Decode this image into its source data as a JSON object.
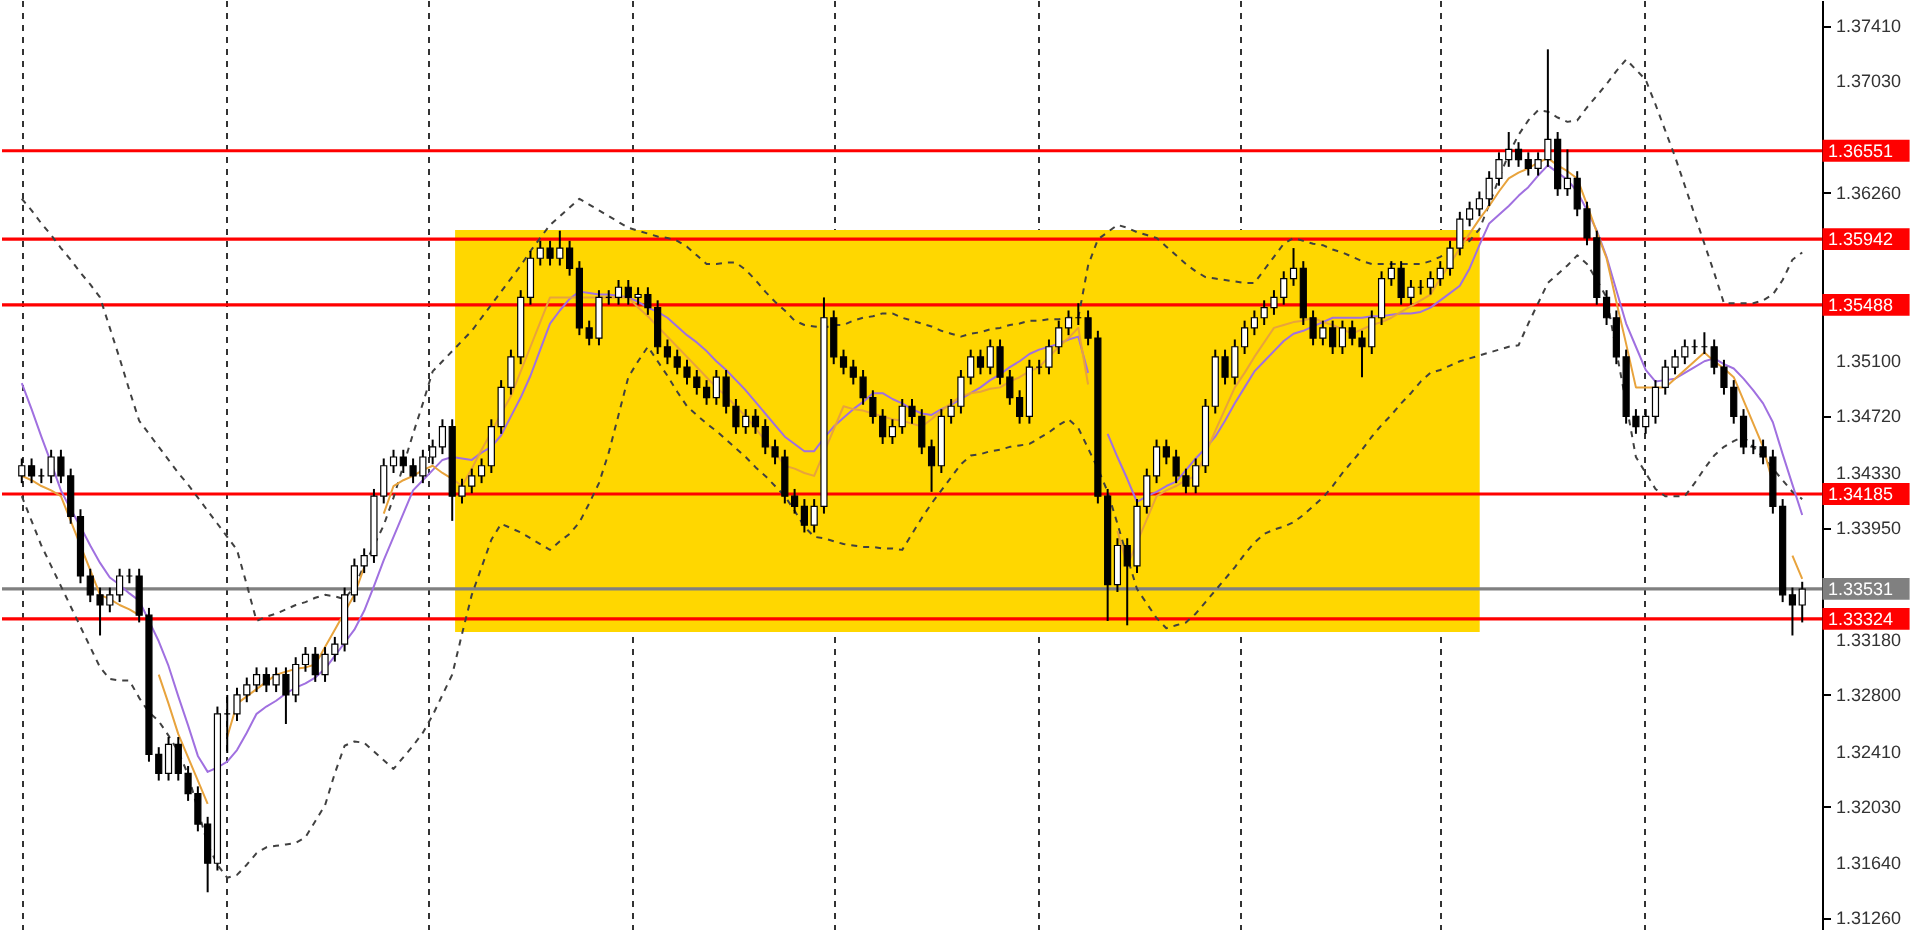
{
  "chart_data": {
    "type": "candlestick",
    "categories": [
      null,
      null,
      null,
      null,
      null,
      null,
      null,
      null,
      null,
      null,
      null,
      null,
      null,
      null,
      null,
      null,
      null,
      null,
      null,
      null,
      null,
      null,
      null,
      null,
      null,
      null,
      null,
      null,
      null,
      null,
      null,
      null,
      null,
      null,
      null,
      null,
      null,
      null,
      null,
      null,
      null,
      null,
      null,
      null,
      null,
      null,
      null,
      null,
      null,
      null,
      null,
      null,
      null,
      null,
      null,
      null,
      null,
      null,
      null,
      null,
      null,
      null,
      null,
      null,
      null,
      null,
      null,
      null,
      null,
      null,
      null,
      null,
      null,
      null,
      null,
      null,
      null,
      null,
      null,
      null,
      null,
      null,
      null,
      null,
      null,
      null,
      null,
      null,
      null,
      null,
      null,
      null,
      null,
      null,
      null,
      null,
      null,
      null,
      null,
      null,
      null,
      null,
      null,
      null,
      null,
      null,
      null,
      null,
      null,
      null,
      null,
      null,
      null,
      null,
      null,
      null,
      null,
      null,
      null,
      null,
      null,
      null,
      null,
      null,
      null,
      null,
      null,
      null,
      null,
      null,
      null,
      null,
      null,
      null,
      null,
      null,
      null,
      null,
      null,
      null,
      null,
      null,
      null,
      null,
      null,
      null,
      null,
      null,
      null,
      null,
      null,
      null,
      null,
      null,
      null,
      null,
      null,
      null,
      null,
      null,
      null,
      null,
      null,
      null,
      null,
      null,
      null,
      null,
      null,
      null,
      null,
      null,
      null,
      null,
      null,
      null,
      null,
      null,
      null,
      null,
      null,
      null,
      null
    ],
    "ohlc": [
      [
        1.3431,
        1.3443,
        1.3426,
        1.3438
      ],
      [
        1.3438,
        1.3443,
        1.3426,
        1.3431
      ],
      [
        1.3431,
        1.3436,
        1.3426,
        1.3431
      ],
      [
        1.3431,
        1.3449,
        1.3426,
        1.3444
      ],
      [
        1.3444,
        1.3449,
        1.3426,
        1.3431
      ],
      [
        1.3431,
        1.3436,
        1.3398,
        1.3403
      ],
      [
        1.3403,
        1.3408,
        1.3357,
        1.3362
      ],
      [
        1.3362,
        1.3367,
        1.3344,
        1.3349
      ],
      [
        1.3349,
        1.3354,
        1.3321,
        1.3342
      ],
      [
        1.3342,
        1.3354,
        1.3337,
        1.3349
      ],
      [
        1.3349,
        1.3367,
        1.3344,
        1.3362
      ],
      [
        1.3362,
        1.3367,
        1.3357,
        1.3362
      ],
      [
        1.3362,
        1.3367,
        1.333,
        1.3335
      ],
      [
        1.3335,
        1.334,
        1.3234,
        1.3239
      ],
      [
        1.3239,
        1.3244,
        1.3221,
        1.3226
      ],
      [
        1.3226,
        1.3251,
        1.3221,
        1.3246
      ],
      [
        1.3246,
        1.3251,
        1.3221,
        1.3226
      ],
      [
        1.3226,
        1.3231,
        1.3207,
        1.3212
      ],
      [
        1.3212,
        1.3217,
        1.3186,
        1.3191
      ],
      [
        1.3191,
        1.3196,
        1.3144,
        1.3164
      ],
      [
        1.3164,
        1.3272,
        1.3159,
        1.3267
      ],
      [
        1.3267,
        1.328,
        1.324,
        1.3267
      ],
      [
        1.3267,
        1.3285,
        1.3262,
        1.328
      ],
      [
        1.328,
        1.3292,
        1.3275,
        1.3287
      ],
      [
        1.3287,
        1.3299,
        1.3282,
        1.3294
      ],
      [
        1.3294,
        1.3299,
        1.3282,
        1.3287
      ],
      [
        1.3287,
        1.3299,
        1.3282,
        1.3294
      ],
      [
        1.3294,
        1.3299,
        1.326,
        1.328
      ],
      [
        1.328,
        1.3306,
        1.3275,
        1.3301
      ],
      [
        1.3301,
        1.3313,
        1.3296,
        1.3308
      ],
      [
        1.3308,
        1.3313,
        1.3289,
        1.3294
      ],
      [
        1.3294,
        1.3313,
        1.3289,
        1.3308
      ],
      [
        1.3308,
        1.332,
        1.3303,
        1.3315
      ],
      [
        1.3315,
        1.3354,
        1.331,
        1.3349
      ],
      [
        1.3349,
        1.3374,
        1.3344,
        1.3369
      ],
      [
        1.3369,
        1.3381,
        1.3364,
        1.3376
      ],
      [
        1.3376,
        1.3422,
        1.3371,
        1.3417
      ],
      [
        1.3417,
        1.3443,
        1.3412,
        1.3438
      ],
      [
        1.3438,
        1.3449,
        1.3433,
        1.3444
      ],
      [
        1.3444,
        1.3449,
        1.3433,
        1.3438
      ],
      [
        1.3438,
        1.3443,
        1.3426,
        1.3431
      ],
      [
        1.3431,
        1.3449,
        1.3426,
        1.3444
      ],
      [
        1.3444,
        1.3456,
        1.3439,
        1.3451
      ],
      [
        1.3451,
        1.347,
        1.3446,
        1.3465
      ],
      [
        1.3465,
        1.347,
        1.34,
        1.3417
      ],
      [
        1.3417,
        1.3429,
        1.3412,
        1.3424
      ],
      [
        1.3424,
        1.3436,
        1.3419,
        1.3431
      ],
      [
        1.3431,
        1.3443,
        1.3426,
        1.3438
      ],
      [
        1.3438,
        1.347,
        1.3433,
        1.3465
      ],
      [
        1.3465,
        1.3497,
        1.346,
        1.3492
      ],
      [
        1.3492,
        1.3518,
        1.3487,
        1.3513
      ],
      [
        1.3513,
        1.3559,
        1.3508,
        1.3554
      ],
      [
        1.3554,
        1.3586,
        1.3549,
        1.3581
      ],
      [
        1.3581,
        1.3593,
        1.3576,
        1.3588
      ],
      [
        1.3588,
        1.3593,
        1.3576,
        1.3581
      ],
      [
        1.3581,
        1.36,
        1.3576,
        1.3588
      ],
      [
        1.3588,
        1.3593,
        1.3569,
        1.3574
      ],
      [
        1.3574,
        1.3579,
        1.3528,
        1.3533
      ],
      [
        1.3533,
        1.3538,
        1.3521,
        1.3526
      ],
      [
        1.3526,
        1.3559,
        1.3521,
        1.3554
      ],
      [
        1.3554,
        1.3559,
        1.3549,
        1.3554
      ],
      [
        1.3554,
        1.3566,
        1.3549,
        1.3561
      ],
      [
        1.3561,
        1.3566,
        1.3549,
        1.3554
      ],
      [
        1.3554,
        1.3561,
        1.3549,
        1.3556
      ],
      [
        1.3556,
        1.3561,
        1.3542,
        1.3547
      ],
      [
        1.3547,
        1.3552,
        1.3515,
        1.352
      ],
      [
        1.352,
        1.3525,
        1.3508,
        1.3513
      ],
      [
        1.3513,
        1.3518,
        1.3501,
        1.3506
      ],
      [
        1.3506,
        1.3511,
        1.3494,
        1.3499
      ],
      [
        1.3499,
        1.3504,
        1.3487,
        1.3492
      ],
      [
        1.3492,
        1.3497,
        1.348,
        1.3485
      ],
      [
        1.3485,
        1.3504,
        1.348,
        1.3499
      ],
      [
        1.3499,
        1.3504,
        1.3474,
        1.3479
      ],
      [
        1.3479,
        1.3484,
        1.346,
        1.3465
      ],
      [
        1.3465,
        1.3477,
        1.346,
        1.3472
      ],
      [
        1.3472,
        1.3477,
        1.346,
        1.3465
      ],
      [
        1.3465,
        1.347,
        1.3446,
        1.3451
      ],
      [
        1.3451,
        1.3456,
        1.3439,
        1.3444
      ],
      [
        1.3444,
        1.3449,
        1.3412,
        1.3417
      ],
      [
        1.3417,
        1.3422,
        1.3405,
        1.341
      ],
      [
        1.341,
        1.3415,
        1.3392,
        1.3397
      ],
      [
        1.3397,
        1.3415,
        1.3392,
        1.341
      ],
      [
        1.341,
        1.3554,
        1.3405,
        1.354
      ],
      [
        1.354,
        1.3545,
        1.3508,
        1.3513
      ],
      [
        1.3513,
        1.3518,
        1.3501,
        1.3506
      ],
      [
        1.3506,
        1.3511,
        1.3494,
        1.3499
      ],
      [
        1.3499,
        1.3504,
        1.348,
        1.3485
      ],
      [
        1.3485,
        1.349,
        1.3467,
        1.3472
      ],
      [
        1.3472,
        1.3477,
        1.3453,
        1.3458
      ],
      [
        1.3458,
        1.347,
        1.3453,
        1.3465
      ],
      [
        1.3465,
        1.3484,
        1.346,
        1.3479
      ],
      [
        1.3479,
        1.3484,
        1.3467,
        1.3472
      ],
      [
        1.3472,
        1.3477,
        1.3446,
        1.3451
      ],
      [
        1.3451,
        1.3456,
        1.342,
        1.3438
      ],
      [
        1.3438,
        1.3477,
        1.3433,
        1.3472
      ],
      [
        1.3472,
        1.3484,
        1.3467,
        1.3479
      ],
      [
        1.3479,
        1.3504,
        1.3474,
        1.3499
      ],
      [
        1.3499,
        1.3518,
        1.3494,
        1.3513
      ],
      [
        1.3513,
        1.3518,
        1.3501,
        1.3506
      ],
      [
        1.3506,
        1.3525,
        1.3501,
        1.352
      ],
      [
        1.352,
        1.3525,
        1.3494,
        1.3499
      ],
      [
        1.3499,
        1.3504,
        1.348,
        1.3485
      ],
      [
        1.3485,
        1.349,
        1.3467,
        1.3472
      ],
      [
        1.3472,
        1.3511,
        1.3467,
        1.3506
      ],
      [
        1.3506,
        1.3511,
        1.3501,
        1.3506
      ],
      [
        1.3506,
        1.3525,
        1.3501,
        1.352
      ],
      [
        1.352,
        1.3538,
        1.3515,
        1.3533
      ],
      [
        1.3533,
        1.3545,
        1.3528,
        1.354
      ],
      [
        1.354,
        1.355,
        1.3535,
        1.354
      ],
      [
        1.354,
        1.3545,
        1.3521,
        1.3526
      ],
      [
        1.3526,
        1.3531,
        1.3412,
        1.3417
      ],
      [
        1.3417,
        1.3422,
        1.3331,
        1.3356
      ],
      [
        1.3356,
        1.3388,
        1.3351,
        1.3383
      ],
      [
        1.3383,
        1.3388,
        1.3328,
        1.3369
      ],
      [
        1.3369,
        1.3415,
        1.3364,
        1.341
      ],
      [
        1.341,
        1.3436,
        1.3405,
        1.3431
      ],
      [
        1.3431,
        1.3456,
        1.3426,
        1.3451
      ],
      [
        1.3451,
        1.3456,
        1.3439,
        1.3444
      ],
      [
        1.3444,
        1.3449,
        1.3426,
        1.3431
      ],
      [
        1.3431,
        1.3436,
        1.3419,
        1.3424
      ],
      [
        1.3424,
        1.3443,
        1.3419,
        1.3438
      ],
      [
        1.3438,
        1.3484,
        1.3433,
        1.3479
      ],
      [
        1.3479,
        1.3518,
        1.3474,
        1.3513
      ],
      [
        1.3513,
        1.3518,
        1.3494,
        1.3499
      ],
      [
        1.3499,
        1.3525,
        1.3494,
        1.352
      ],
      [
        1.352,
        1.3538,
        1.3515,
        1.3533
      ],
      [
        1.3533,
        1.3545,
        1.3528,
        1.354
      ],
      [
        1.354,
        1.3552,
        1.3535,
        1.3547
      ],
      [
        1.3547,
        1.3559,
        1.3542,
        1.3554
      ],
      [
        1.3554,
        1.3572,
        1.3549,
        1.3567
      ],
      [
        1.3567,
        1.3588,
        1.3562,
        1.3574
      ],
      [
        1.3574,
        1.3579,
        1.3535,
        1.354
      ],
      [
        1.354,
        1.3545,
        1.3521,
        1.3526
      ],
      [
        1.3526,
        1.3538,
        1.3521,
        1.3533
      ],
      [
        1.3533,
        1.3538,
        1.3515,
        1.352
      ],
      [
        1.352,
        1.3538,
        1.3515,
        1.3533
      ],
      [
        1.3533,
        1.3538,
        1.3521,
        1.3526
      ],
      [
        1.3526,
        1.3531,
        1.3499,
        1.352
      ],
      [
        1.352,
        1.3545,
        1.3515,
        1.354
      ],
      [
        1.354,
        1.3572,
        1.3535,
        1.3567
      ],
      [
        1.3567,
        1.3579,
        1.3562,
        1.3574
      ],
      [
        1.3574,
        1.3579,
        1.3549,
        1.3554
      ],
      [
        1.3554,
        1.3566,
        1.3549,
        1.3561
      ],
      [
        1.3561,
        1.3566,
        1.3556,
        1.3561
      ],
      [
        1.3561,
        1.3572,
        1.3556,
        1.3567
      ],
      [
        1.3567,
        1.3579,
        1.3562,
        1.3574
      ],
      [
        1.3574,
        1.3593,
        1.3569,
        1.3588
      ],
      [
        1.3588,
        1.3613,
        1.3583,
        1.3608
      ],
      [
        1.3608,
        1.362,
        1.3603,
        1.3615
      ],
      [
        1.3615,
        1.3627,
        1.361,
        1.3622
      ],
      [
        1.3622,
        1.3641,
        1.3617,
        1.3636
      ],
      [
        1.3636,
        1.3654,
        1.3631,
        1.3649
      ],
      [
        1.3649,
        1.3668,
        1.3644,
        1.3656
      ],
      [
        1.3656,
        1.3661,
        1.3644,
        1.3649
      ],
      [
        1.3649,
        1.3654,
        1.3638,
        1.3643
      ],
      [
        1.3643,
        1.3654,
        1.3638,
        1.3649
      ],
      [
        1.3649,
        1.3725,
        1.3644,
        1.3663
      ],
      [
        1.3663,
        1.3668,
        1.3624,
        1.3629
      ],
      [
        1.3629,
        1.3656,
        1.3624,
        1.3636
      ],
      [
        1.3636,
        1.3641,
        1.361,
        1.3615
      ],
      [
        1.3615,
        1.362,
        1.359,
        1.3595
      ],
      [
        1.3595,
        1.36,
        1.3549,
        1.3554
      ],
      [
        1.3554,
        1.3559,
        1.3535,
        1.354
      ],
      [
        1.354,
        1.3545,
        1.3508,
        1.3513
      ],
      [
        1.3513,
        1.3518,
        1.3467,
        1.3472
      ],
      [
        1.3472,
        1.3477,
        1.346,
        1.3465
      ],
      [
        1.3465,
        1.3477,
        1.346,
        1.3472
      ],
      [
        1.3472,
        1.3497,
        1.3467,
        1.3492
      ],
      [
        1.3492,
        1.3511,
        1.3487,
        1.3506
      ],
      [
        1.3506,
        1.3518,
        1.3501,
        1.3513
      ],
      [
        1.3513,
        1.3525,
        1.3508,
        1.352
      ],
      [
        1.352,
        1.3525,
        1.3515,
        1.352
      ],
      [
        1.352,
        1.353,
        1.3515,
        1.352
      ],
      [
        1.352,
        1.3525,
        1.3501,
        1.3506
      ],
      [
        1.3506,
        1.3511,
        1.3487,
        1.3492
      ],
      [
        1.3492,
        1.3497,
        1.3467,
        1.3472
      ],
      [
        1.3472,
        1.3477,
        1.3446,
        1.3451
      ],
      [
        1.3451,
        1.3456,
        1.3446,
        1.3451
      ],
      [
        1.3451,
        1.3456,
        1.3439,
        1.3444
      ],
      [
        1.3444,
        1.3449,
        1.3405,
        1.341
      ],
      [
        1.341,
        1.3415,
        1.3344,
        1.3349
      ],
      [
        1.3349,
        1.3354,
        1.3321,
        1.3342
      ],
      [
        1.3342,
        1.3358,
        1.333,
        1.3353
      ]
    ],
    "series": [
      {
        "type": "line",
        "color": "#404040",
        "line_style": "dashed",
        "values": [
          1.3622,
          1.3614,
          1.3605,
          1.3597,
          1.3588,
          1.358,
          1.3571,
          1.3563,
          1.3554,
          1.3533,
          1.3512,
          1.349,
          1.3469,
          1.346,
          1.3451,
          1.3442,
          1.3433,
          1.3425,
          1.3416,
          1.3407,
          1.3398,
          1.3389,
          1.338,
          1.3356,
          1.3331,
          1.3334,
          1.3336,
          1.3339,
          1.3342,
          1.3344,
          1.3347,
          1.3349,
          1.3348,
          1.3346,
          1.3355,
          1.3369,
          1.3383,
          1.3397,
          1.3416,
          1.3438,
          1.346,
          1.3481,
          1.3503,
          1.351,
          1.3517,
          1.3524,
          1.3531,
          1.354,
          1.3549,
          1.3558,
          1.3567,
          1.3576,
          1.3586,
          1.3595,
          1.3604,
          1.361,
          1.3616,
          1.3622,
          1.3618,
          1.3614,
          1.361,
          1.3606,
          1.3602,
          1.36,
          1.3598,
          1.3596,
          1.3595,
          1.3593,
          1.3589,
          1.3583,
          1.3577,
          1.3577,
          1.3578,
          1.3578,
          1.3573,
          1.3566,
          1.3558,
          1.3551,
          1.3545,
          1.3538,
          1.3535,
          1.3534,
          1.3533,
          1.3535,
          1.3535,
          1.3538,
          1.354,
          1.3541,
          1.3543,
          1.3543,
          1.354,
          1.3538,
          1.3536,
          1.3534,
          1.3531,
          1.3529,
          1.3527,
          1.3529,
          1.353,
          1.3532,
          1.3533,
          1.3535,
          1.3536,
          1.3538,
          1.3538,
          1.3539,
          1.3539,
          1.354,
          1.354,
          1.3576,
          1.3594,
          1.3599,
          1.3604,
          1.3602,
          1.3599,
          1.3597,
          1.3595,
          1.3589,
          1.3583,
          1.3577,
          1.3572,
          1.3568,
          1.3567,
          1.3566,
          1.3565,
          1.3564,
          1.3564,
          1.3573,
          1.3582,
          1.3591,
          1.3595,
          1.3593,
          1.3591,
          1.359,
          1.3587,
          1.3585,
          1.3582,
          1.3579,
          1.3577,
          1.3577,
          1.3577,
          1.3577,
          1.3577,
          1.3577,
          1.3579,
          1.3582,
          1.3586,
          1.3589,
          1.3593,
          1.3601,
          1.3618,
          1.3636,
          1.3653,
          1.3666,
          1.3676,
          1.3683,
          1.3682,
          1.3678,
          1.3675,
          1.3676,
          1.3685,
          1.3693,
          1.3701,
          1.371,
          1.3718,
          1.3711,
          1.3704,
          1.3687,
          1.3669,
          1.3651,
          1.3631,
          1.3611,
          1.3591,
          1.3571,
          1.355,
          1.355,
          1.355,
          1.355,
          1.3552,
          1.3556,
          1.3566,
          1.358,
          1.3585
        ]
      },
      {
        "type": "line",
        "color": "#404040",
        "line_style": "dashed",
        "values": [
          1.3417,
          1.34,
          1.3383,
          1.3369,
          1.3355,
          1.3341,
          1.3327,
          1.3313,
          1.3299,
          1.3291,
          1.329,
          1.329,
          1.3278,
          1.3268,
          1.3262,
          1.3252,
          1.3241,
          1.3225,
          1.3201,
          1.3177,
          1.3163,
          1.3154,
          1.3156,
          1.3163,
          1.3171,
          1.3175,
          1.3176,
          1.3177,
          1.3178,
          1.3182,
          1.3193,
          1.3204,
          1.3226,
          1.3245,
          1.3248,
          1.3247,
          1.3241,
          1.3235,
          1.3229,
          1.3237,
          1.3245,
          1.3254,
          1.3266,
          1.328,
          1.3294,
          1.3322,
          1.3349,
          1.3368,
          1.3387,
          1.3398,
          1.3395,
          1.3392,
          1.3388,
          1.3384,
          1.338,
          1.3386,
          1.3391,
          1.3399,
          1.3412,
          1.3426,
          1.3447,
          1.3473,
          1.3499,
          1.351,
          1.352,
          1.351,
          1.35,
          1.3489,
          1.3479,
          1.3473,
          1.3467,
          1.3462,
          1.3456,
          1.345,
          1.3444,
          1.3437,
          1.3431,
          1.3424,
          1.3417,
          1.3407,
          1.3396,
          1.3389,
          1.3388,
          1.3386,
          1.3384,
          1.3383,
          1.3382,
          1.3382,
          1.3381,
          1.3381,
          1.338,
          1.3391,
          1.3402,
          1.3412,
          1.3421,
          1.343,
          1.3439,
          1.3445,
          1.3446,
          1.3448,
          1.3449,
          1.3451,
          1.3452,
          1.3453,
          1.3457,
          1.3461,
          1.3466,
          1.347,
          1.3464,
          1.345,
          1.3436,
          1.342,
          1.3398,
          1.3375,
          1.3353,
          1.3343,
          1.3333,
          1.3326,
          1.3328,
          1.333,
          1.3336,
          1.3344,
          1.3352,
          1.336,
          1.3368,
          1.3377,
          1.3385,
          1.3391,
          1.3394,
          1.3396,
          1.3399,
          1.3404,
          1.341,
          1.3416,
          1.3424,
          1.3433,
          1.3441,
          1.3449,
          1.3458,
          1.3466,
          1.3473,
          1.3481,
          1.3488,
          1.3496,
          1.3502,
          1.3504,
          1.3507,
          1.351,
          1.3512,
          1.3514,
          1.3516,
          1.3518,
          1.352,
          1.3521,
          1.3536,
          1.355,
          1.3564,
          1.357,
          1.3576,
          1.3583,
          1.3577,
          1.3566,
          1.3554,
          1.3517,
          1.3481,
          1.3444,
          1.3433,
          1.3422,
          1.3417,
          1.3417,
          1.3417,
          1.3426,
          1.3436,
          1.3445,
          1.3451,
          1.3455,
          1.3458,
          1.3451,
          1.3444,
          1.3436,
          1.3428,
          1.342,
          1.3415
        ]
      },
      {
        "type": "line",
        "color": "#a070e0",
        "line_style": "solid",
        "values": [
          1.3495,
          1.3477,
          1.3458,
          1.344,
          1.3421,
          1.3408,
          1.3396,
          1.3383,
          1.3371,
          1.3361,
          1.3356,
          1.335,
          1.3345,
          1.3331,
          1.3317,
          1.33,
          1.3279,
          1.3259,
          1.3238,
          1.3227,
          1.323,
          1.3234,
          1.3242,
          1.3254,
          1.3267,
          1.3272,
          1.3276,
          1.3281,
          1.3285,
          1.3288,
          1.3292,
          1.3298,
          1.3307,
          1.3316,
          1.3325,
          1.3338,
          1.3355,
          1.3373,
          1.3389,
          1.3405,
          1.3421,
          1.3428,
          1.3435,
          1.3442,
          1.3444,
          1.3443,
          1.3442,
          1.3447,
          1.3451,
          1.3459,
          1.3472,
          1.3485,
          1.35,
          1.3518,
          1.3536,
          1.3545,
          1.3553,
          1.3558,
          1.3557,
          1.3556,
          1.3556,
          1.3555,
          1.3554,
          1.3551,
          1.3547,
          1.3544,
          1.354,
          1.3534,
          1.3528,
          1.3523,
          1.3517,
          1.351,
          1.3504,
          1.3497,
          1.349,
          1.3482,
          1.3474,
          1.3466,
          1.3458,
          1.3453,
          1.3448,
          1.3448,
          1.3457,
          1.3465,
          1.3471,
          1.3477,
          1.3482,
          1.3488,
          1.3488,
          1.3484,
          1.3481,
          1.3477,
          1.3474,
          1.3473,
          1.3477,
          1.348,
          1.3484,
          1.3488,
          1.3492,
          1.3497,
          1.3501,
          1.3506,
          1.351,
          1.3515,
          1.3518,
          1.352,
          1.3522,
          1.3525,
          1.3527,
          1.3502,
          null,
          1.346,
          1.3444,
          1.3429,
          1.3413,
          1.3417,
          1.342,
          1.3424,
          1.3427,
          1.3435,
          1.3443,
          1.345,
          1.3458,
          1.3469,
          1.3481,
          1.3492,
          1.3503,
          1.351,
          1.3517,
          1.3524,
          1.3529,
          1.3531,
          1.3534,
          1.3537,
          1.354,
          1.354,
          1.354,
          1.354,
          1.3541,
          1.3541,
          1.3542,
          1.3543,
          1.3543,
          1.3544,
          1.3547,
          1.3552,
          1.3557,
          1.3562,
          1.3574,
          1.359,
          1.3605,
          1.3611,
          1.3617,
          1.3624,
          1.363,
          1.3638,
          1.3645,
          1.364,
          1.3635,
          1.3627,
          1.3614,
          1.36,
          1.3582,
          1.3559,
          1.3536,
          1.352,
          1.3504,
          1.3496,
          1.3497,
          1.3498,
          1.3502,
          1.3506,
          1.351,
          1.3512,
          1.3508,
          1.3505,
          1.3498,
          1.349,
          1.3481,
          1.3468,
          1.3446,
          1.3425,
          1.3404
        ]
      },
      {
        "type": "line",
        "color": "#e8a33c",
        "line_style": "solid",
        "values": [
          1.3431,
          1.3428,
          1.3424,
          1.3421,
          1.3417,
          1.34,
          1.3383,
          1.3366,
          1.3349,
          1.3346,
          1.3342,
          1.3339,
          1.3335,
          null,
          1.3294,
          1.3274,
          1.3253,
          1.3237,
          1.3221,
          1.3205,
          null,
          1.3251,
          1.3274,
          1.3279,
          1.3284,
          1.3289,
          1.3294,
          1.3296,
          1.3298,
          1.3299,
          1.3301,
          1.3313,
          1.3325,
          1.3337,
          1.3349,
          1.3368,
          null,
          1.3405,
          1.3424,
          1.3428,
          1.3431,
          1.3435,
          1.3438,
          1.3433,
          1.3429,
          1.3424,
          1.3436,
          1.3449,
          1.3461,
          1.3474,
          1.3486,
          1.3503,
          1.352,
          1.3537,
          1.3554,
          1.3554,
          1.3554,
          1.3554,
          1.3554,
          1.3554,
          1.3554,
          1.3554,
          1.3554,
          1.3547,
          1.3541,
          1.3534,
          1.3527,
          1.352,
          1.3513,
          1.3506,
          1.3499,
          1.3492,
          1.3486,
          1.3479,
          1.3472,
          1.3464,
          1.3455,
          1.3447,
          1.3438,
          1.3436,
          1.3433,
          1.3431,
          1.3447,
          1.3463,
          1.3479,
          1.3477,
          1.3476,
          1.3474,
          1.3472,
          1.347,
          1.3469,
          1.3467,
          1.3465,
          1.347,
          1.3476,
          1.3481,
          1.3486,
          1.3488,
          1.3489,
          1.3491,
          1.3492,
          1.3496,
          1.3499,
          1.3503,
          1.3506,
          1.3513,
          1.352,
          1.3526,
          1.3533,
          1.3494,
          null,
          null,
          1.3393,
          1.3369,
          1.3385,
          1.3401,
          1.3417,
          1.3421,
          1.3424,
          1.3428,
          1.3431,
          1.3446,
          1.3462,
          1.3477,
          1.3492,
          1.3502,
          1.3513,
          1.3523,
          1.3533,
          1.3535,
          1.3537,
          1.3538,
          1.354,
          1.3537,
          1.3535,
          1.3532,
          1.3529,
          1.3532,
          1.3535,
          1.3537,
          1.354,
          1.3544,
          1.3548,
          1.3552,
          1.3556,
          1.3567,
          1.3577,
          1.3588,
          1.3598,
          1.3608,
          1.3617,
          1.3627,
          1.3636,
          1.364,
          1.3643,
          1.3647,
          1.365,
          1.3645,
          1.3641,
          1.3636,
          1.3618,
          1.3599,
          1.3581,
          1.3551,
          1.3522,
          1.3492,
          1.3492,
          1.3492,
          1.3492,
          1.3498,
          1.3504,
          1.351,
          1.3516,
          1.351,
          1.3505,
          1.3499,
          1.3483,
          1.3467,
          1.3451,
          1.3426,
          null,
          1.3376,
          1.336
        ]
      }
    ],
    "ylim": [
      1.3118,
      1.3759
    ],
    "yticks": [
      {
        "value": 1.3741,
        "label": "1.37410"
      },
      {
        "value": 1.3703,
        "label": "1.37030"
      },
      {
        "value": 1.3626,
        "label": "1.36260"
      },
      {
        "value": 1.351,
        "label": "1.35100"
      },
      {
        "value": 1.3472,
        "label": "1.34720"
      },
      {
        "value": 1.3433,
        "label": "1.34330"
      },
      {
        "value": 1.3395,
        "label": "1.33950"
      },
      {
        "value": 1.3318,
        "label": "1.33180"
      },
      {
        "value": 1.328,
        "label": "1.32800"
      },
      {
        "value": 1.3241,
        "label": "1.32410"
      },
      {
        "value": 1.3203,
        "label": "1.32030"
      },
      {
        "value": 1.3164,
        "label": "1.31640"
      },
      {
        "value": 1.3126,
        "label": "1.31260"
      }
    ],
    "tick_labels": "y",
    "ref_lines": [
      {
        "axis": "y",
        "value": 1.36551,
        "label": "1.36551",
        "color": "#ff0000"
      },
      {
        "axis": "y",
        "value": 1.35942,
        "label": "1.35942",
        "color": "#ff0000"
      },
      {
        "axis": "y",
        "value": 1.35488,
        "label": "1.35488",
        "color": "#ff0000"
      },
      {
        "axis": "y",
        "value": 1.34185,
        "label": "1.34185",
        "color": "#ff0000"
      },
      {
        "axis": "y",
        "value": 1.33531,
        "label": "1.33531",
        "color": "#808080"
      },
      {
        "axis": "y",
        "value": 1.33324,
        "label": "1.33324",
        "color": "#ff0000"
      }
    ]
  }
}
